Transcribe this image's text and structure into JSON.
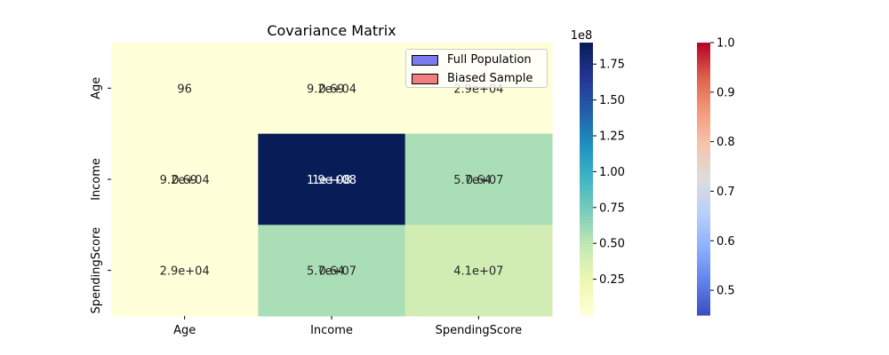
{
  "chart_data": {
    "type": "heatmap",
    "title": "Covariance Matrix",
    "categories": [
      "Age",
      "Income",
      "SpendingScore"
    ],
    "matrix": [
      [
        96,
        92000,
        29000
      ],
      [
        92000,
        190000000,
        57000000
      ],
      [
        29000,
        57000000,
        41000000
      ]
    ],
    "cell_labels": [
      [
        "96",
        "9.2e+04",
        "2.9e+04"
      ],
      [
        "9.2e+04",
        "1.9e+08",
        "5.7e+07"
      ],
      [
        "2.9e+04",
        "5.7e+07",
        "4.1e+07"
      ]
    ],
    "overlay_labels": [
      [
        "",
        "0.69",
        ""
      ],
      [
        "0.69",
        "1e+08",
        "0.64"
      ],
      [
        "",
        "0.64",
        ""
      ]
    ],
    "colorbar_main": {
      "colormap": "YlGnBu",
      "range": [
        0,
        190000000
      ],
      "ticks": [
        0.25,
        0.5,
        0.75,
        1.0,
        1.25,
        1.5,
        1.75
      ],
      "tick_labels": [
        "0.25",
        "0.50",
        "0.75",
        "1.00",
        "1.25",
        "1.50",
        "1.75"
      ],
      "offset_label": "1e8"
    },
    "colorbar_second": {
      "colormap": "coolwarm",
      "range": [
        0.45,
        1.0
      ],
      "ticks": [
        0.5,
        0.6,
        0.7,
        0.8,
        0.9,
        1.0
      ],
      "tick_labels": [
        "0.5",
        "0.6",
        "0.7",
        "0.8",
        "0.9",
        "1.0"
      ]
    },
    "legend": {
      "position": "top-right",
      "entries": [
        {
          "label": "Full Population",
          "color": "#7b7bf0"
        },
        {
          "label": "Biased Sample",
          "color": "#f08080"
        }
      ]
    }
  }
}
